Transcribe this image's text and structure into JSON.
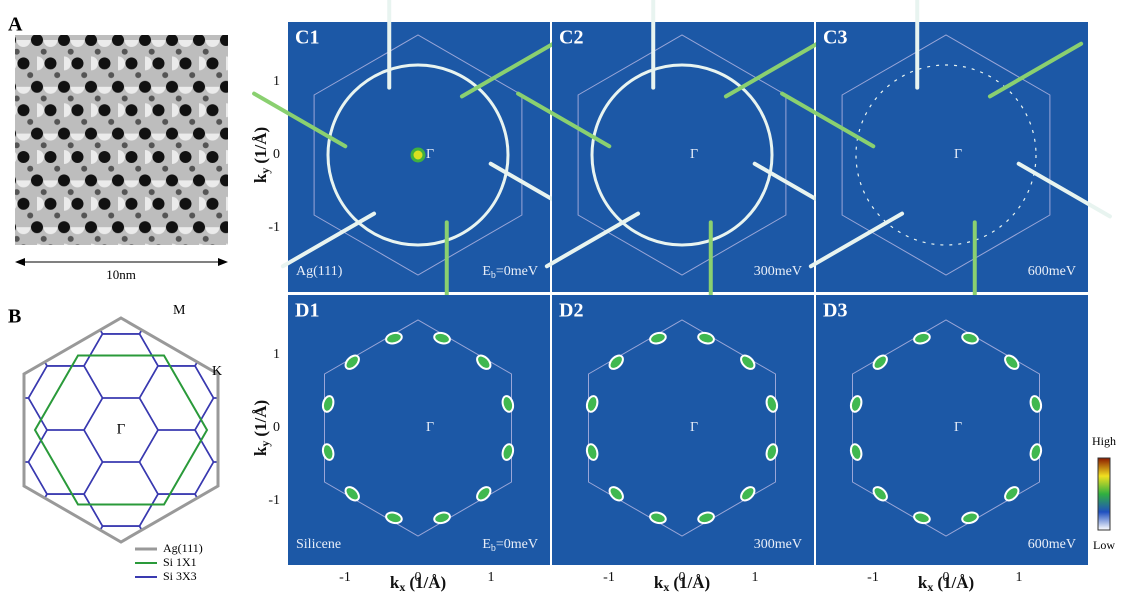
{
  "panel_a": {
    "label": "A",
    "scale": "10nm"
  },
  "panel_b": {
    "label": "B",
    "points": [
      "M",
      "K",
      "Γ"
    ],
    "legend": [
      "Ag(111)",
      "Si 1X1",
      "Si 3X3"
    ]
  },
  "axes": {
    "k": "k",
    "y_sub": "y",
    "x_sub": "x",
    "unit": "(1/Å)",
    "y_ticks": [
      "1",
      "0",
      "-1"
    ],
    "x_ticks": [
      "-1",
      "0",
      "1"
    ]
  },
  "panels": [
    {
      "label": "C1",
      "center": "Γ",
      "left_note": "Ag(111)",
      "right_note": "E",
      "right_sub": "b",
      "right_rest": "=0meV"
    },
    {
      "label": "C2",
      "center": "Γ",
      "right_rest": "300meV"
    },
    {
      "label": "C3",
      "center": "Γ",
      "right_rest": "600meV"
    },
    {
      "label": "D1",
      "center": "Γ",
      "left_note": "Silicene",
      "right_note": "E",
      "right_sub": "b",
      "right_rest": "=0meV"
    },
    {
      "label": "D2",
      "center": "Γ",
      "right_rest": "300meV"
    },
    {
      "label": "D3",
      "center": "Γ",
      "right_rest": "600meV"
    }
  ],
  "colorbar": {
    "high": "High",
    "low": "Low"
  }
}
